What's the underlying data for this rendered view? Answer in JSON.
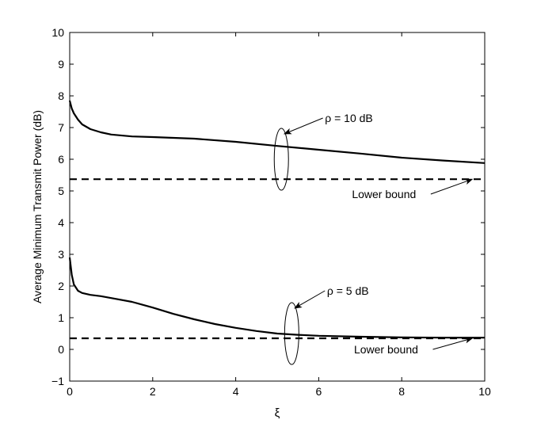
{
  "chart_data": {
    "type": "line",
    "title": "",
    "xlabel": "ξ",
    "ylabel": "Average Minimum Transmit Power (dB)",
    "xlim": [
      0,
      10
    ],
    "ylim": [
      -1,
      10
    ],
    "xticks": [
      0,
      2,
      4,
      6,
      8,
      10
    ],
    "yticks": [
      -1,
      0,
      1,
      2,
      3,
      4,
      5,
      6,
      7,
      8,
      9,
      10
    ],
    "grid": false,
    "legend": "none",
    "series": [
      {
        "style": "solid",
        "x": [
          0,
          0.05,
          0.1,
          0.2,
          0.3,
          0.5,
          0.75,
          1,
          1.5,
          2,
          3,
          4,
          5,
          6,
          7,
          8,
          9,
          10
        ],
        "y": [
          7.85,
          7.6,
          7.45,
          7.25,
          7.1,
          6.95,
          6.85,
          6.78,
          6.72,
          6.7,
          6.65,
          6.55,
          6.42,
          6.3,
          6.18,
          6.05,
          5.96,
          5.88
        ]
      },
      {
        "style": "dashed",
        "x": [
          0,
          10
        ],
        "y": [
          5.37,
          5.37
        ]
      },
      {
        "style": "solid",
        "x": [
          0,
          0.05,
          0.1,
          0.2,
          0.3,
          0.5,
          0.75,
          1,
          1.5,
          2,
          2.5,
          3,
          3.5,
          4,
          4.5,
          5,
          5.5,
          6,
          7,
          8,
          9,
          10
        ],
        "y": [
          2.9,
          2.35,
          2.05,
          1.85,
          1.78,
          1.72,
          1.68,
          1.62,
          1.5,
          1.32,
          1.12,
          0.95,
          0.8,
          0.68,
          0.58,
          0.5,
          0.46,
          0.43,
          0.4,
          0.38,
          0.37,
          0.37
        ]
      },
      {
        "style": "dashed",
        "x": [
          0,
          10
        ],
        "y": [
          0.35,
          0.35
        ]
      }
    ],
    "annotations": [
      {
        "text": "ρ = 10 dB",
        "ellipse_center": [
          5.1,
          6.0
        ],
        "text_pos": [
          6.15,
          7.3
        ],
        "arrow_from": [
          6.1,
          7.3
        ],
        "arrow_to": [
          5.17,
          6.8
        ]
      },
      {
        "text": "Lower bound",
        "text_pos": [
          6.8,
          4.9
        ],
        "arrow_from": [
          8.7,
          4.9
        ],
        "arrow_to": [
          9.7,
          5.37
        ]
      },
      {
        "text": "ρ = 5 dB",
        "ellipse_center": [
          5.35,
          0.5
        ],
        "text_pos": [
          6.2,
          1.85
        ],
        "arrow_from": [
          6.15,
          1.85
        ],
        "arrow_to": [
          5.42,
          1.3
        ]
      },
      {
        "text": "Lower bound",
        "text_pos": [
          6.85,
          0.0
        ],
        "arrow_from": [
          8.75,
          0.0
        ],
        "arrow_to": [
          9.7,
          0.35
        ]
      }
    ]
  }
}
